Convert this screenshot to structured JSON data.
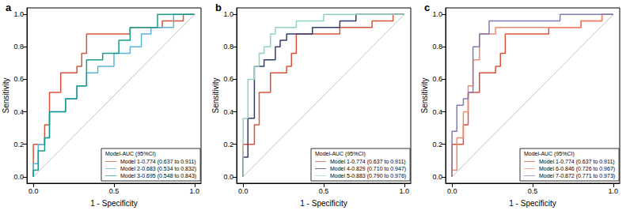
{
  "chart_data": [
    {
      "type": "line",
      "title": "a",
      "x_label": "1 - Specificity",
      "y_label": "Sensitivity",
      "legend_title": "Model-AUC (95%CI)",
      "legend": "bottom right",
      "grid": false,
      "xlim": [
        -0.04,
        1.04
      ],
      "ylim": [
        -0.04,
        1.04
      ],
      "xticks": [
        {
          "value": 0,
          "label": "0.0"
        },
        {
          "value": 0.5,
          "label": "0.5"
        },
        {
          "value": 1,
          "label": "1.0"
        }
      ],
      "yticks": [
        {
          "value": 0,
          "label": "0.0"
        },
        {
          "value": 0.2,
          "label": "0.2"
        },
        {
          "value": 0.4,
          "label": "0.4"
        },
        {
          "value": 0.6,
          "label": "0.6"
        },
        {
          "value": 0.8,
          "label": "0.8"
        },
        {
          "value": 1,
          "label": "1.0"
        }
      ],
      "reference_line": {
        "x": [
          0,
          1
        ],
        "values": [
          0,
          1
        ],
        "color": "#b0b0b0"
      },
      "series": [
        {
          "name": "Model 1-0.774 (0.637 to 0.911)",
          "color": "#d9533c",
          "x": [
            0,
            0,
            0.07,
            0.07,
            0.1,
            0.1,
            0.17,
            0.17,
            0.27,
            0.27,
            0.3,
            0.3,
            0.33,
            0.33,
            0.6,
            0.6,
            0.8,
            0.8,
            0.93,
            0.93,
            1
          ],
          "values": [
            0,
            0.2,
            0.2,
            0.32,
            0.32,
            0.52,
            0.52,
            0.64,
            0.64,
            0.68,
            0.68,
            0.76,
            0.76,
            0.88,
            0.88,
            0.92,
            0.92,
            0.96,
            0.96,
            1,
            1
          ]
        },
        {
          "name": "Model 2-0.683 (0.534 to 0.832)",
          "color": "#5ab4d6",
          "x": [
            0,
            0,
            0.03,
            0.03,
            0.07,
            0.07,
            0.1,
            0.1,
            0.2,
            0.2,
            0.27,
            0.27,
            0.33,
            0.33,
            0.4,
            0.4,
            0.5,
            0.5,
            0.6,
            0.6,
            0.67,
            0.67,
            0.73,
            0.73,
            0.87,
            0.87,
            1
          ],
          "values": [
            0,
            0.08,
            0.08,
            0.2,
            0.2,
            0.24,
            0.24,
            0.4,
            0.4,
            0.48,
            0.48,
            0.56,
            0.56,
            0.64,
            0.64,
            0.68,
            0.68,
            0.76,
            0.76,
            0.8,
            0.8,
            0.88,
            0.88,
            0.92,
            0.92,
            1,
            1
          ]
        },
        {
          "name": "Model 3-0.695 (0.548 to 0.843)",
          "color": "#1a9a8a",
          "x": [
            0,
            0,
            0.03,
            0.03,
            0.07,
            0.07,
            0.1,
            0.1,
            0.2,
            0.2,
            0.27,
            0.27,
            0.33,
            0.33,
            0.43,
            0.43,
            0.53,
            0.53,
            0.6,
            0.6,
            0.77,
            0.77,
            1
          ],
          "values": [
            0,
            0.04,
            0.04,
            0.16,
            0.16,
            0.24,
            0.24,
            0.4,
            0.4,
            0.48,
            0.48,
            0.56,
            0.56,
            0.72,
            0.72,
            0.76,
            0.76,
            0.84,
            0.84,
            0.92,
            0.92,
            1,
            1
          ]
        }
      ]
    },
    {
      "type": "line",
      "title": "b",
      "x_label": "1 - Specificity",
      "y_label": "Sensitivity",
      "legend_title": "Model-AUC (95%CI)",
      "legend": "bottom right",
      "grid": false,
      "xlim": [
        -0.04,
        1.04
      ],
      "ylim": [
        -0.04,
        1.04
      ],
      "xticks": [
        {
          "value": 0,
          "label": "0.0"
        },
        {
          "value": 0.5,
          "label": "0.5"
        },
        {
          "value": 1,
          "label": "1.0"
        }
      ],
      "yticks": [
        {
          "value": 0,
          "label": "0.0"
        },
        {
          "value": 0.2,
          "label": "0.2"
        },
        {
          "value": 0.4,
          "label": "0.4"
        },
        {
          "value": 0.6,
          "label": "0.6"
        },
        {
          "value": 0.8,
          "label": "0.8"
        },
        {
          "value": 1,
          "label": "1.0"
        }
      ],
      "reference_line": {
        "x": [
          0,
          1
        ],
        "values": [
          0,
          1
        ],
        "color": "#b0b0b0"
      },
      "series": [
        {
          "name": "Model 1-0.774 (0.637 to 0.911)",
          "color": "#d9533c",
          "x": [
            0,
            0,
            0.07,
            0.07,
            0.1,
            0.1,
            0.17,
            0.17,
            0.27,
            0.27,
            0.3,
            0.3,
            0.33,
            0.33,
            0.6,
            0.6,
            0.8,
            0.8,
            0.93,
            0.93,
            1
          ],
          "values": [
            0,
            0.2,
            0.2,
            0.32,
            0.32,
            0.52,
            0.52,
            0.64,
            0.64,
            0.68,
            0.68,
            0.76,
            0.76,
            0.88,
            0.88,
            0.92,
            0.92,
            0.96,
            0.96,
            1,
            1
          ]
        },
        {
          "name": "Model 4-0.829 (0.710 to 0.947)",
          "color": "#2e3d6b",
          "x": [
            0,
            0,
            0.03,
            0.03,
            0.07,
            0.07,
            0.13,
            0.13,
            0.2,
            0.2,
            0.23,
            0.23,
            0.27,
            0.27,
            0.43,
            0.43,
            0.6,
            0.6,
            0.7,
            0.7,
            1
          ],
          "values": [
            0,
            0.12,
            0.12,
            0.36,
            0.36,
            0.68,
            0.68,
            0.72,
            0.72,
            0.8,
            0.8,
            0.84,
            0.84,
            0.88,
            0.88,
            0.92,
            0.92,
            0.96,
            0.96,
            1,
            1
          ]
        },
        {
          "name": "Model 5-0.883 (0.790 to 0.976)",
          "color": "#8fd4b8",
          "x": [
            0,
            0,
            0.03,
            0.03,
            0.07,
            0.07,
            0.1,
            0.1,
            0.13,
            0.13,
            0.17,
            0.17,
            0.2,
            0.2,
            0.33,
            0.33,
            0.5,
            0.5,
            1
          ],
          "values": [
            0,
            0.36,
            0.36,
            0.6,
            0.6,
            0.68,
            0.68,
            0.76,
            0.76,
            0.8,
            0.8,
            0.88,
            0.88,
            0.92,
            0.92,
            0.96,
            0.96,
            1,
            1
          ]
        }
      ]
    },
    {
      "type": "line",
      "title": "c",
      "x_label": "1 - Specificity",
      "y_label": "Sensitivity",
      "legend_title": "Model-AUC (95%CI)",
      "legend": "bottom right",
      "grid": false,
      "xlim": [
        -0.04,
        1.04
      ],
      "ylim": [
        -0.04,
        1.04
      ],
      "xticks": [
        {
          "value": 0,
          "label": "0.0"
        },
        {
          "value": 0.5,
          "label": "0.5"
        },
        {
          "value": 1,
          "label": "1.0"
        }
      ],
      "yticks": [
        {
          "value": 0,
          "label": "0.0"
        },
        {
          "value": 0.2,
          "label": "0.2"
        },
        {
          "value": 0.4,
          "label": "0.4"
        },
        {
          "value": 0.6,
          "label": "0.6"
        },
        {
          "value": 0.8,
          "label": "0.8"
        },
        {
          "value": 1,
          "label": "1.0"
        }
      ],
      "reference_line": {
        "x": [
          0,
          1
        ],
        "values": [
          0,
          1
        ],
        "color": "#b0b0b0"
      },
      "series": [
        {
          "name": "Model 1-0.774 (0.637 to 0.911)",
          "color": "#d9533c",
          "x": [
            0,
            0,
            0.07,
            0.07,
            0.1,
            0.1,
            0.17,
            0.17,
            0.27,
            0.27,
            0.3,
            0.3,
            0.33,
            0.33,
            0.6,
            0.6,
            0.8,
            0.8,
            0.93,
            0.93,
            1
          ],
          "values": [
            0,
            0.2,
            0.2,
            0.32,
            0.32,
            0.52,
            0.52,
            0.64,
            0.64,
            0.68,
            0.68,
            0.76,
            0.76,
            0.88,
            0.88,
            0.92,
            0.92,
            0.96,
            0.96,
            1,
            1
          ]
        },
        {
          "name": "Model 6-0.846 (0.726 to 0.967)",
          "color": "#f08a6e",
          "x": [
            0,
            0,
            0.03,
            0.03,
            0.07,
            0.07,
            0.1,
            0.1,
            0.13,
            0.13,
            0.17,
            0.17,
            0.27,
            0.27,
            0.8,
            0.8,
            0.93,
            0.93,
            1
          ],
          "values": [
            0,
            0.04,
            0.04,
            0.24,
            0.24,
            0.4,
            0.4,
            0.56,
            0.56,
            0.72,
            0.72,
            0.88,
            0.88,
            0.92,
            0.92,
            0.96,
            0.96,
            1,
            1
          ]
        },
        {
          "name": "Model 7-0.872 (0.771 to 0.973)",
          "color": "#7b7fb8",
          "x": [
            0,
            0,
            0.03,
            0.03,
            0.07,
            0.07,
            0.1,
            0.1,
            0.13,
            0.13,
            0.17,
            0.17,
            0.23,
            0.23,
            0.67,
            0.67,
            1
          ],
          "values": [
            0,
            0.28,
            0.28,
            0.44,
            0.44,
            0.48,
            0.48,
            0.52,
            0.52,
            0.8,
            0.8,
            0.88,
            0.88,
            0.96,
            0.96,
            1,
            1
          ]
        }
      ]
    }
  ]
}
